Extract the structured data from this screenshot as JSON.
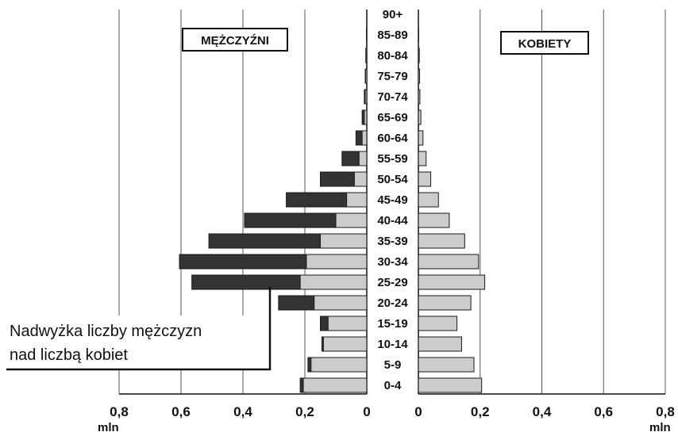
{
  "chart_data": {
    "type": "bar",
    "subtype": "population-pyramid",
    "unit": "mln",
    "left_panel": {
      "title": "MĘŻCZYŹNI"
    },
    "right_panel": {
      "title": "KOBIETY"
    },
    "categories": [
      "0-4",
      "5-9",
      "10-14",
      "15-19",
      "20-24",
      "25-29",
      "30-34",
      "35-39",
      "40-44",
      "45-49",
      "50-54",
      "55-59",
      "60-64",
      "65-69",
      "70-74",
      "75-79",
      "80-84",
      "85-89",
      "90+"
    ],
    "series": [
      {
        "name": "MĘŻCZYŹNI",
        "values": [
          0.215,
          0.19,
          0.145,
          0.15,
          0.285,
          0.565,
          0.605,
          0.51,
          0.395,
          0.26,
          0.15,
          0.08,
          0.035,
          0.015,
          0.008,
          0.005,
          0.003,
          0.001,
          0.0
        ]
      },
      {
        "name": "KOBIETY",
        "values": [
          0.205,
          0.18,
          0.14,
          0.125,
          0.17,
          0.215,
          0.195,
          0.15,
          0.1,
          0.065,
          0.04,
          0.025,
          0.015,
          0.008,
          0.005,
          0.004,
          0.003,
          0.001,
          0.0
        ]
      }
    ],
    "xlim": [
      0,
      0.8
    ],
    "ticks": [
      "0",
      "0,2",
      "0,4",
      "0,6",
      "0,8"
    ],
    "colors": {
      "surplus": "#333333",
      "base": "#cccccc",
      "outline": "#1a1a1a",
      "grid": "#555555"
    },
    "grid": true,
    "annotation": {
      "line1": "Nadwyżka liczby mężczyzn",
      "line2": "nad liczbą kobiet"
    }
  }
}
